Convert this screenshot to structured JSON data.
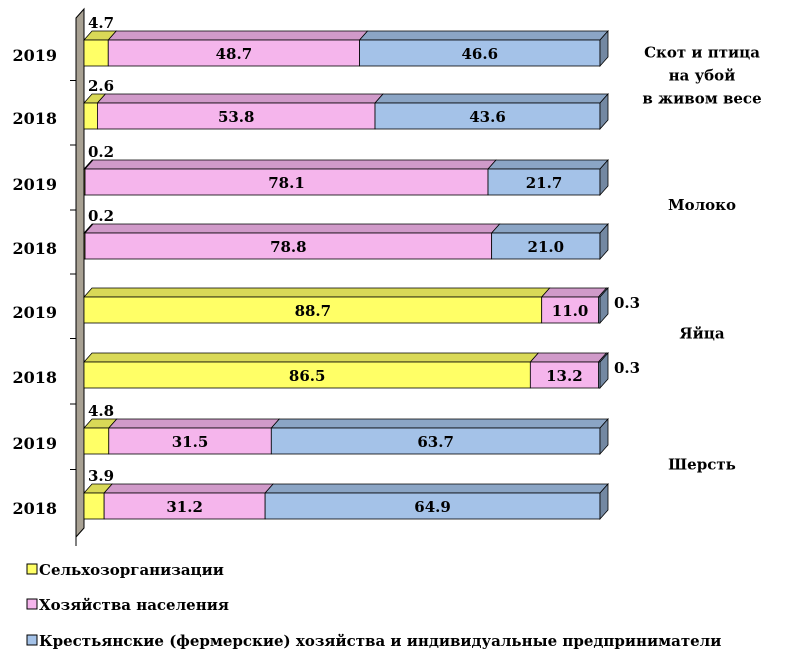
{
  "chart_data": {
    "type": "bar",
    "orientation": "horizontal",
    "stacked": true,
    "percent_stacked": true,
    "xlim": [
      0,
      100
    ],
    "title": "",
    "xlabel": "",
    "ylabel": "",
    "grid": false,
    "legend_position": "bottom",
    "series": [
      {
        "name": "Сельхозорганизации",
        "color": "#ffff66"
      },
      {
        "name": "Хозяйства населения",
        "color": "#f5b5ec"
      },
      {
        "name": "Крестьянские (фермерские) хозяйства и индивидуальные предприниматели",
        "color": "#a4c2e8"
      }
    ],
    "groups": [
      {
        "label_lines": [
          "Скот  и птица",
          "на убой",
          "в живом весе"
        ],
        "rows": [
          {
            "year": "2019",
            "values": [
              4.7,
              48.7,
              46.6
            ],
            "labels": [
              "4.7",
              "48.7",
              "46.6"
            ]
          },
          {
            "year": "2018",
            "values": [
              2.6,
              53.8,
              43.6
            ],
            "labels": [
              "2.6",
              "53.8",
              "43.6"
            ]
          }
        ]
      },
      {
        "label_lines": [
          "Молоко"
        ],
        "rows": [
          {
            "year": "2019",
            "values": [
              0.2,
              78.1,
              21.7
            ],
            "labels": [
              "0.2",
              "78.1",
              "21.7"
            ]
          },
          {
            "year": "2018",
            "values": [
              0.2,
              78.8,
              21.0
            ],
            "labels": [
              "0.2",
              "78.8",
              "21.0"
            ]
          }
        ]
      },
      {
        "label_lines": [
          "Яйца"
        ],
        "rows": [
          {
            "year": "2019",
            "values": [
              88.7,
              11.0,
              0.3
            ],
            "labels": [
              "88.7",
              "11.0",
              "0.3"
            ]
          },
          {
            "year": "2018",
            "values": [
              86.5,
              13.2,
              0.3
            ],
            "labels": [
              "86.5",
              "13.2",
              "0.3"
            ]
          }
        ]
      },
      {
        "label_lines": [
          "Шерсть"
        ],
        "rows": [
          {
            "year": "2019",
            "values": [
              4.8,
              31.5,
              63.7
            ],
            "labels": [
              "4.8",
              "31.5",
              "63.7"
            ]
          },
          {
            "year": "2018",
            "values": [
              3.9,
              31.2,
              64.9
            ],
            "labels": [
              "3.9",
              "31.2",
              "64.9"
            ]
          }
        ]
      }
    ]
  }
}
